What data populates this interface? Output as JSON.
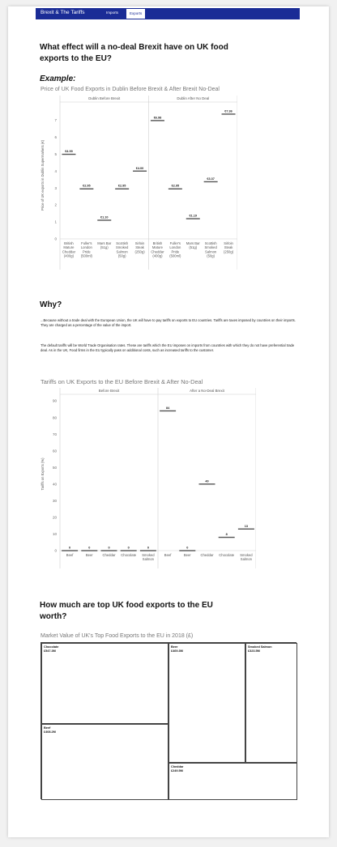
{
  "header": {
    "title": "Brexit & The Tariffs",
    "tabs": [
      {
        "label": "Imports"
      },
      {
        "label": "Exports"
      }
    ]
  },
  "section1": {
    "question": "What effect will a no-deal Brexit have on UK food exports to the EU?",
    "example_label": "Example:"
  },
  "section2": {
    "heading": "Why?",
    "paragraph1": "...Because without a trade deal with the European Union, the UK will have to pay tariffs on exports to EU countries. Tariffs are taxes imposed by countries on their imports. They are charged as a percentage of the value of the import.",
    "paragraph2": "The default tariffs will be World Trade Organisation rates. These are tariffs which the EU imposes on imports from countries with which they do not have preferential trade deal. As in the UK, Food firms in the EU typically pass on additional costs, such as increased tariffs to the customer."
  },
  "section3": {
    "question": "How much are top UK food exports to the EU worth?"
  },
  "chart_data": [
    {
      "type": "bar",
      "title": "Price of UK Food Exports in Dublin Before Brexit & After Brexit No-Deal",
      "ylabel": "Price of UK exports in Dublin Supermarkets (€)",
      "ylim": [
        0,
        7.5
      ],
      "yticks": [
        0,
        1,
        2,
        3,
        4,
        5,
        6,
        7
      ],
      "panels": [
        "Dublin Before Brexit",
        "Dublin After No Deal"
      ],
      "categories": [
        "British Mature Cheddar (400g)",
        "Fuller's London Pride (500ml)",
        "Mars Bar (51g)",
        "Scottish Smoked Salmon (50g)",
        "Sirloin Steak (250g)"
      ],
      "series": [
        {
          "values": [
            4.99,
            2.95,
            1.1,
            2.95,
            4.0
          ],
          "labels": [
            "€4.99",
            "€2.95",
            "€1.10",
            "€2.95",
            "€4.00"
          ]
        },
        {
          "values": [
            6.98,
            2.95,
            1.19,
            3.37,
            7.36
          ],
          "labels": [
            "€6.98",
            "€2.95",
            "€1.19",
            "€3.37",
            "€7.36"
          ]
        }
      ],
      "grid": false
    },
    {
      "type": "bar",
      "title": "Tariffs on UK Exports to the EU Before Brexit & After No-Deal",
      "ylabel": "Tariffs on Exports (%)",
      "ylim": [
        0,
        92
      ],
      "yticks": [
        0,
        10,
        20,
        30,
        40,
        50,
        60,
        70,
        80,
        90
      ],
      "panels": [
        "Before Brexit",
        "After a No-Deal Brexit"
      ],
      "categories": [
        "Beef",
        "Beer",
        "Cheddar",
        "Chocolate",
        "Smoked Salmon"
      ],
      "series": [
        {
          "values": [
            0,
            0,
            0,
            0,
            0
          ],
          "labels": [
            "0",
            "0",
            "0",
            "0",
            "0"
          ]
        },
        {
          "values": [
            84,
            0,
            40,
            8,
            13
          ],
          "labels": [
            "84",
            "0",
            "40",
            "8",
            "13"
          ]
        }
      ],
      "grid": false
    },
    {
      "type": "treemap",
      "title": "Market Value of UK's Top Food Exports to the EU in 2018 (£)",
      "items": [
        {
          "name": "Chocolate",
          "value_label": "£547.3M"
        },
        {
          "name": "Beer",
          "value_label": "£469.3M"
        },
        {
          "name": "Smoked Salmon",
          "value_label": "£323.5M"
        },
        {
          "name": "Beef",
          "value_label": "£408.2M"
        },
        {
          "name": "Cheddar",
          "value_label": "£249.5M"
        }
      ]
    }
  ]
}
